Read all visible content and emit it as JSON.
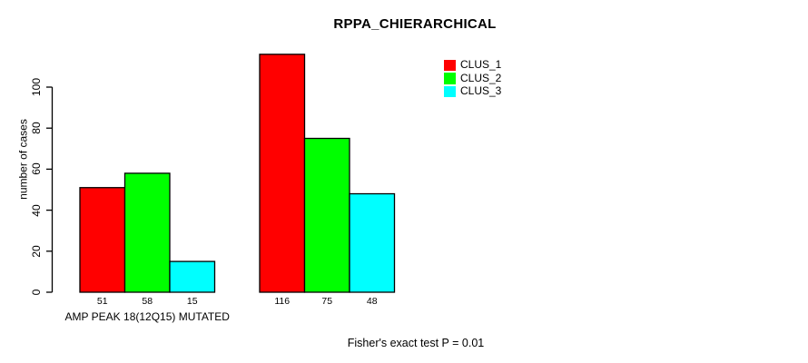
{
  "chart_data": {
    "type": "bar",
    "title": "RPPA_CHIERARCHICAL",
    "ylabel": "number of cases",
    "xlabel": "",
    "ylim": [
      0,
      116
    ],
    "yticks": [
      0,
      20,
      40,
      60,
      80,
      100
    ],
    "grid": false,
    "legend_position": "top-right",
    "bar_border_color": "#000000",
    "series": [
      {
        "name": "CLUS_1",
        "color": "#FF0000"
      },
      {
        "name": "CLUS_2",
        "color": "#00FF00"
      },
      {
        "name": "CLUS_3",
        "color": "#00FFFF"
      }
    ],
    "categories": [
      "AMP PEAK 18(12Q15) MUTATED",
      ""
    ],
    "groups": [
      {
        "label": "AMP PEAK 18(12Q15) MUTATED",
        "values": [
          51,
          58,
          15
        ]
      },
      {
        "label": "",
        "values": [
          116,
          75,
          48
        ]
      }
    ],
    "annotation": "Fisher's exact test P = 0.01"
  }
}
